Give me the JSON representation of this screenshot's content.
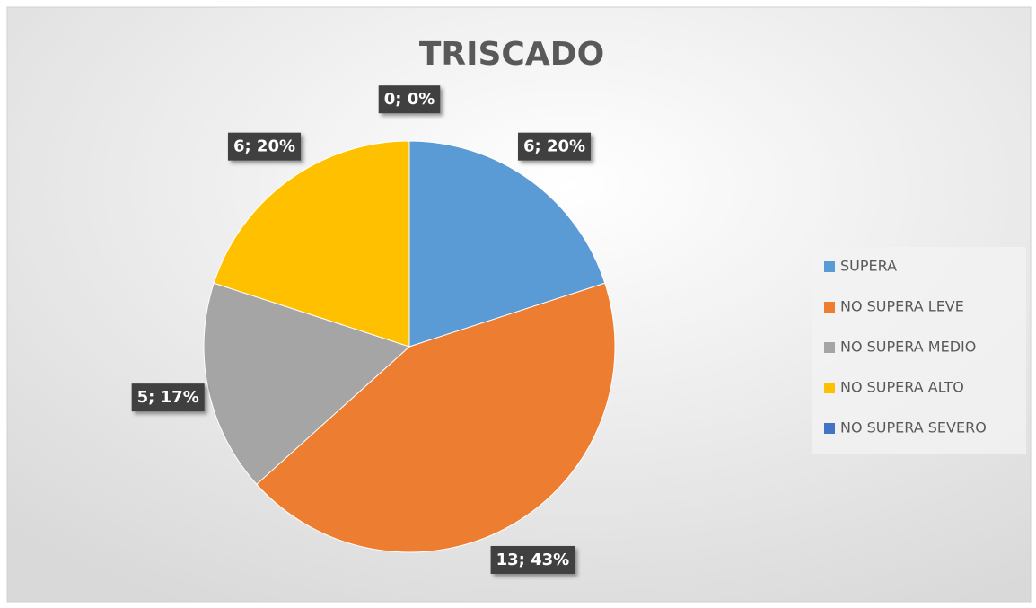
{
  "chart_data": {
    "type": "pie",
    "title": "TRISCADO",
    "categories": [
      "SUPERA",
      "NO SUPERA LEVE",
      "NO SUPERA MEDIO",
      "NO SUPERA ALTO",
      "NO SUPERA SEVERO"
    ],
    "values": [
      6,
      13,
      5,
      6,
      0
    ],
    "value_labels": [
      "6; 20%",
      "13; 43%",
      "5; 17%",
      "6; 20%",
      "0; 0%"
    ],
    "colors": [
      "#5b9bd5",
      "#ed7d31",
      "#a5a5a5",
      "#ffc000",
      "#4472c4"
    ],
    "legend": "right"
  }
}
